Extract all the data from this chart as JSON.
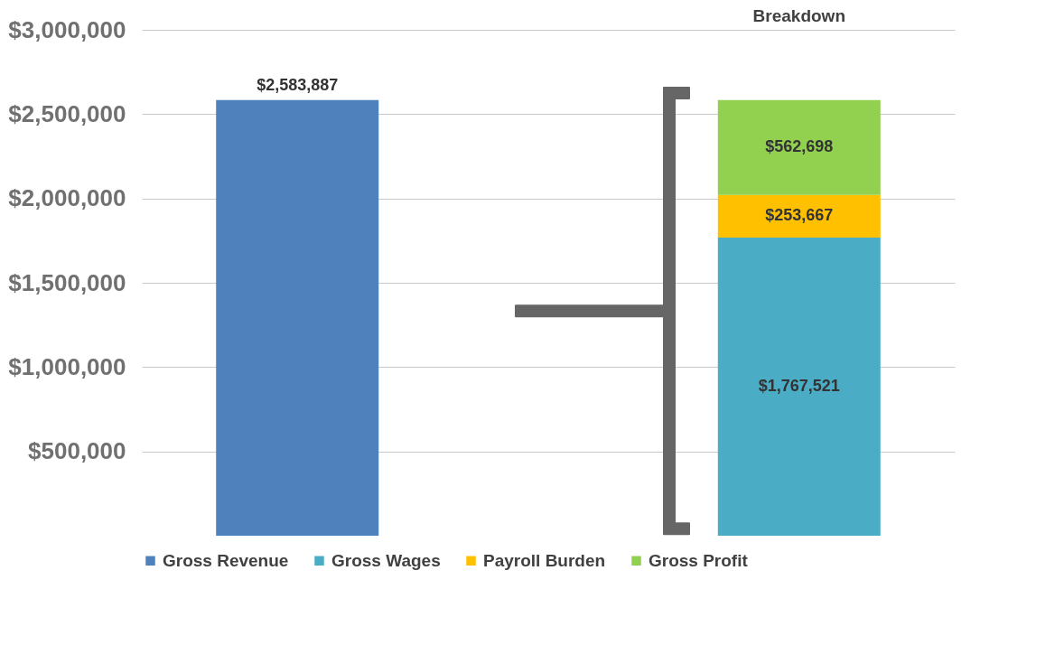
{
  "chart_data": {
    "type": "bar",
    "categories": [
      null,
      "Breakdown"
    ],
    "stacked": true,
    "series": [
      {
        "name": "Gross Revenue",
        "color": "#4f81bd",
        "values": [
          2583887,
          null
        ],
        "value_labels": [
          "$2,583,887",
          null
        ]
      },
      {
        "name": "Gross Wages",
        "color": "#4bacc6",
        "values": [
          null,
          1767521
        ],
        "value_labels": [
          null,
          "$1,767,521"
        ]
      },
      {
        "name": "Payroll Burden",
        "color": "#ffc000",
        "values": [
          null,
          253667
        ],
        "value_labels": [
          null,
          "$253,667"
        ]
      },
      {
        "name": "Gross Profit",
        "color": "#92d050",
        "values": [
          null,
          562698
        ],
        "value_labels": [
          null,
          "$562,698"
        ]
      }
    ],
    "ylim": [
      0,
      3000000
    ],
    "yticks": [
      {
        "value": 500000,
        "label": "$500,000"
      },
      {
        "value": 1000000,
        "label": "$1,000,000"
      },
      {
        "value": 1500000,
        "label": "$1,500,000"
      },
      {
        "value": 2000000,
        "label": "$2,000,000"
      },
      {
        "value": 2500000,
        "label": "$2,500,000"
      },
      {
        "value": 3000000,
        "label": "$3,000,000"
      }
    ],
    "grid": "y",
    "legend": "bottom"
  }
}
